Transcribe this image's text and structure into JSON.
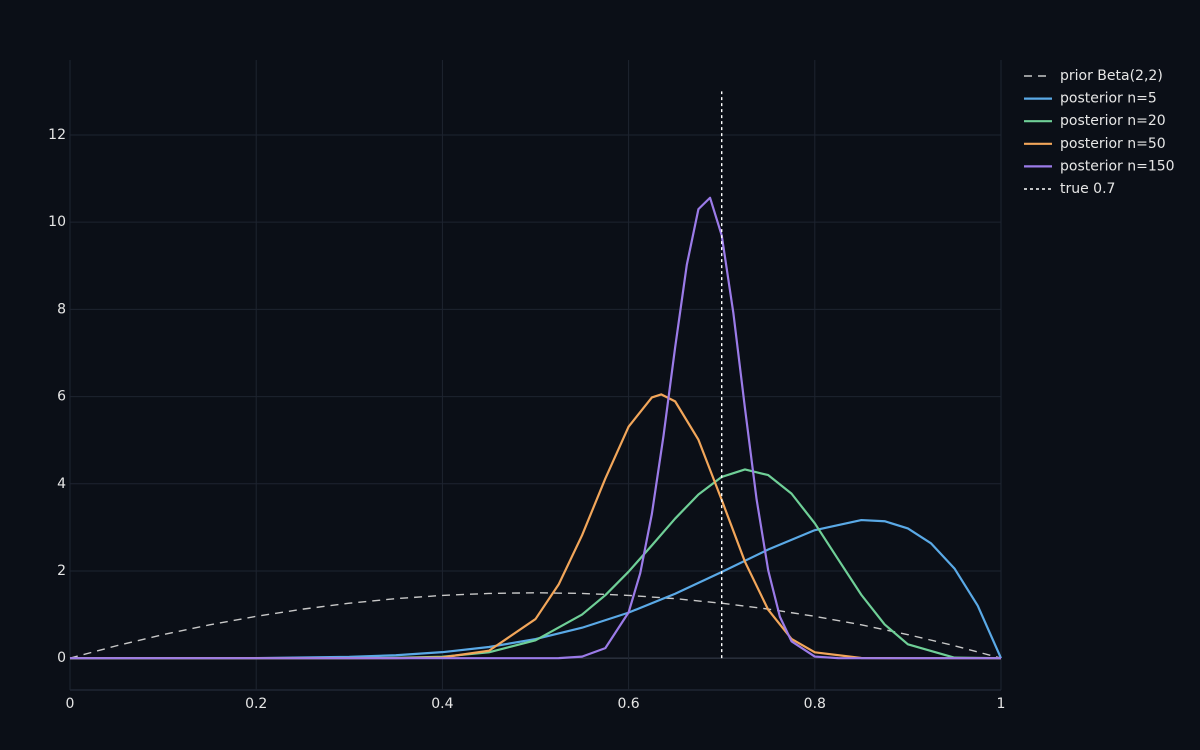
{
  "chart_data": {
    "type": "line",
    "xlim": [
      0,
      1
    ],
    "xticks": [
      0,
      0.2,
      0.4,
      0.6,
      0.8,
      1
    ],
    "ylim": [
      -0.73,
      13.72
    ],
    "yticks": [
      0,
      2,
      4,
      6,
      8,
      10,
      12
    ],
    "grid": true,
    "legend": "outside-right",
    "series": [
      {
        "name": "prior Beta(2,2)",
        "color": "#c8c8c8",
        "dash": "dashed",
        "x": [
          0,
          0.05,
          0.1,
          0.15,
          0.2,
          0.25,
          0.3,
          0.35,
          0.4,
          0.45,
          0.5,
          0.55,
          0.6,
          0.65,
          0.7,
          0.75,
          0.8,
          0.85,
          0.9,
          0.95,
          1
        ],
        "values": [
          0,
          0.285,
          0.54,
          0.765,
          0.96,
          1.125,
          1.26,
          1.365,
          1.44,
          1.485,
          1.5,
          1.485,
          1.44,
          1.365,
          1.26,
          1.125,
          0.96,
          0.765,
          0.54,
          0.285,
          0
        ]
      },
      {
        "name": "posterior n=5",
        "color": "#5aa9e6",
        "dash": "solid",
        "x": [
          0,
          0.2,
          0.3,
          0.35,
          0.4,
          0.45,
          0.5,
          0.55,
          0.6,
          0.65,
          0.7,
          0.75,
          0.8,
          0.85,
          0.875,
          0.9,
          0.925,
          0.95,
          0.975,
          1
        ],
        "values": [
          0,
          0.003,
          0.029,
          0.067,
          0.138,
          0.256,
          0.438,
          0.698,
          1.045,
          1.478,
          1.977,
          2.492,
          2.936,
          3.168,
          3.141,
          2.976,
          2.631,
          2.058,
          1.203,
          0
        ]
      },
      {
        "name": "posterior n=20",
        "color": "#6fcf97",
        "dash": "solid",
        "x": [
          0,
          0.3,
          0.35,
          0.4,
          0.45,
          0.5,
          0.55,
          0.575,
          0.6,
          0.625,
          0.65,
          0.675,
          0.7,
          0.725,
          0.75,
          0.775,
          0.8,
          0.825,
          0.85,
          0.875,
          0.9,
          0.95,
          1
        ],
        "values": [
          0,
          0.0009,
          0.0066,
          0.0344,
          0.134,
          0.409,
          1.0,
          1.445,
          1.984,
          2.588,
          3.202,
          3.755,
          4.157,
          4.328,
          4.199,
          3.774,
          3.093,
          2.27,
          1.452,
          0.773,
          0.318,
          0.012,
          0
        ]
      },
      {
        "name": "posterior n=50",
        "color": "#f2a65a",
        "dash": "solid",
        "x": [
          0,
          0.35,
          0.4,
          0.45,
          0.5,
          0.525,
          0.55,
          0.575,
          0.6,
          0.625,
          0.635,
          0.65,
          0.675,
          0.7,
          0.725,
          0.75,
          0.775,
          0.8,
          0.85,
          0.9,
          1
        ],
        "values": [
          0,
          0.001,
          0.018,
          0.17,
          0.897,
          1.695,
          2.818,
          4.12,
          5.31,
          5.98,
          6.05,
          5.89,
          5.01,
          3.63,
          2.21,
          1.108,
          0.442,
          0.134,
          0.004,
          0,
          0
        ]
      },
      {
        "name": "posterior n=150",
        "color": "#9b7be8",
        "dash": "solid",
        "x": [
          0,
          0.5,
          0.525,
          0.55,
          0.575,
          0.6,
          0.6125,
          0.625,
          0.6375,
          0.65,
          0.6625,
          0.675,
          0.6875,
          0.7,
          0.7125,
          0.725,
          0.7375,
          0.75,
          0.7625,
          0.775,
          0.8,
          0.825,
          0.85,
          1
        ],
        "values": [
          0,
          0,
          0.0004,
          0.035,
          0.23,
          1.05,
          1.95,
          3.31,
          5.1,
          7.13,
          9.02,
          10.3,
          10.56,
          9.7,
          7.92,
          5.73,
          3.64,
          2.01,
          0.95,
          0.386,
          0.037,
          0.0015,
          0,
          0
        ]
      },
      {
        "name": "true 0.7",
        "color": "#ffffff",
        "dash": "dotted",
        "x": [
          0.7,
          0.7
        ],
        "values": [
          0,
          13
        ]
      }
    ]
  }
}
